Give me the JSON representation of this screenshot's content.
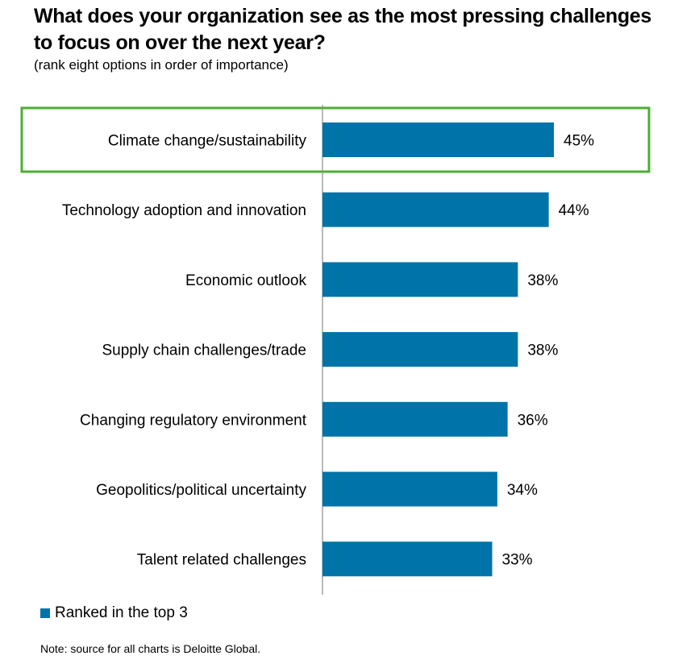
{
  "chart_data": {
    "type": "bar",
    "orientation": "horizontal",
    "title": "What does your organization see as the most pressing challenges to focus on over the next year?",
    "subtitle": "(rank eight options in order of importance)",
    "categories": [
      "Climate change/sustainability",
      "Technology adoption and innovation",
      "Economic outlook",
      "Supply chain challenges/trade",
      "Changing regulatory environment",
      "Geopolitics/political uncertainty",
      "Talent related challenges"
    ],
    "values": [
      45,
      44,
      38,
      38,
      36,
      34,
      33
    ],
    "value_labels": [
      "45%",
      "44%",
      "38%",
      "38%",
      "36%",
      "34%",
      "33%"
    ],
    "series": [
      {
        "name": "Ranked in the top 3",
        "color": "#0073A8"
      }
    ],
    "highlighted_category": "Climate change/sustainability",
    "highlight_color": "#4CAF32",
    "xlim": [
      0,
      100
    ],
    "grid": false,
    "legend_position": "bottom-left",
    "xlabel": "",
    "ylabel": ""
  },
  "note": "Note: source for all charts is Deloitte Global."
}
